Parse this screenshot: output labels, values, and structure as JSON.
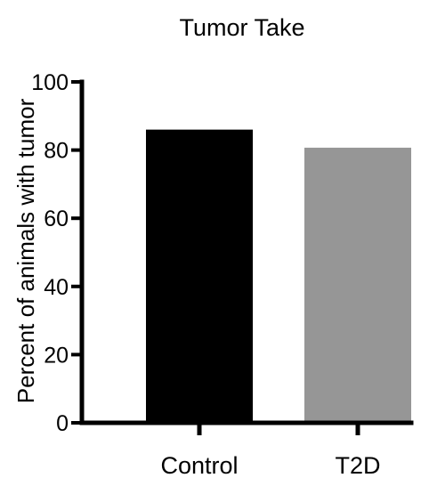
{
  "chart_data": {
    "type": "bar",
    "title": "Tumor Take",
    "xlabel": "",
    "ylabel": "Percent of animals with tumor",
    "categories": [
      "Control",
      "T2D"
    ],
    "values": [
      86,
      80.7
    ],
    "colors": [
      "#000000",
      "#969696"
    ],
    "ylim": [
      0,
      100
    ],
    "yticks": [
      0,
      20,
      40,
      60,
      80,
      100
    ],
    "ytick_labels": [
      "0",
      "20",
      "40",
      "60",
      "80",
      "100"
    ],
    "grid": false,
    "legend": "none"
  }
}
